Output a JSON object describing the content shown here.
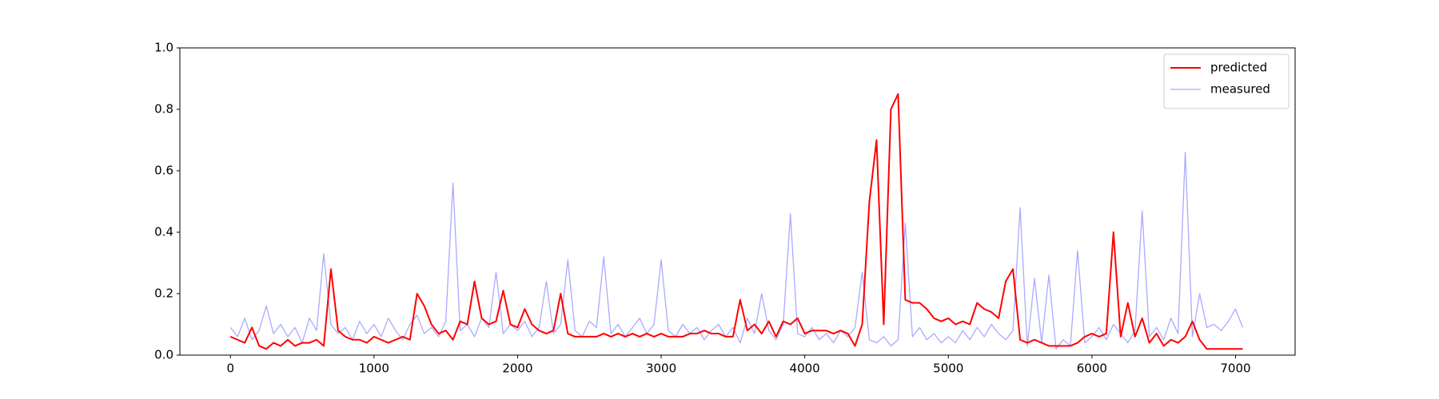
{
  "chart_data": {
    "type": "line",
    "x": [
      0,
      50,
      100,
      150,
      200,
      250,
      300,
      350,
      400,
      450,
      500,
      550,
      600,
      650,
      700,
      750,
      800,
      850,
      900,
      950,
      1000,
      1050,
      1100,
      1150,
      1200,
      1250,
      1300,
      1350,
      1400,
      1450,
      1500,
      1550,
      1600,
      1650,
      1700,
      1750,
      1800,
      1850,
      1900,
      1950,
      2000,
      2050,
      2100,
      2150,
      2200,
      2250,
      2300,
      2350,
      2400,
      2450,
      2500,
      2550,
      2600,
      2650,
      2700,
      2750,
      2800,
      2850,
      2900,
      2950,
      3000,
      3050,
      3100,
      3150,
      3200,
      3250,
      3300,
      3350,
      3400,
      3450,
      3500,
      3550,
      3600,
      3650,
      3700,
      3750,
      3800,
      3850,
      3900,
      3950,
      4000,
      4050,
      4100,
      4150,
      4200,
      4250,
      4300,
      4350,
      4400,
      4450,
      4500,
      4550,
      4600,
      4650,
      4700,
      4750,
      4800,
      4850,
      4900,
      4950,
      5000,
      5050,
      5100,
      5150,
      5200,
      5250,
      5300,
      5350,
      5400,
      5450,
      5500,
      5550,
      5600,
      5650,
      5700,
      5750,
      5800,
      5850,
      5900,
      5950,
      6000,
      6050,
      6100,
      6150,
      6200,
      6250,
      6300,
      6350,
      6400,
      6450,
      6500,
      6550,
      6600,
      6650,
      6700,
      6750,
      6800,
      6850,
      6900,
      6950,
      7000,
      7050
    ],
    "series": [
      {
        "name": "predicted",
        "color": "#ff0000",
        "values": [
          0.06,
          0.05,
          0.04,
          0.09,
          0.03,
          0.02,
          0.04,
          0.03,
          0.05,
          0.03,
          0.04,
          0.04,
          0.05,
          0.03,
          0.28,
          0.08,
          0.06,
          0.05,
          0.05,
          0.04,
          0.06,
          0.05,
          0.04,
          0.05,
          0.06,
          0.05,
          0.2,
          0.16,
          0.1,
          0.07,
          0.08,
          0.05,
          0.11,
          0.1,
          0.24,
          0.12,
          0.1,
          0.11,
          0.21,
          0.1,
          0.09,
          0.15,
          0.1,
          0.08,
          0.07,
          0.08,
          0.2,
          0.07,
          0.06,
          0.06,
          0.06,
          0.06,
          0.07,
          0.06,
          0.07,
          0.06,
          0.07,
          0.06,
          0.07,
          0.06,
          0.07,
          0.06,
          0.06,
          0.06,
          0.07,
          0.07,
          0.08,
          0.07,
          0.07,
          0.06,
          0.06,
          0.18,
          0.08,
          0.1,
          0.07,
          0.11,
          0.06,
          0.11,
          0.1,
          0.12,
          0.07,
          0.08,
          0.08,
          0.08,
          0.07,
          0.08,
          0.07,
          0.03,
          0.1,
          0.5,
          0.7,
          0.1,
          0.8,
          0.85,
          0.18,
          0.17,
          0.17,
          0.15,
          0.12,
          0.11,
          0.12,
          0.1,
          0.11,
          0.1,
          0.17,
          0.15,
          0.14,
          0.12,
          0.24,
          0.28,
          0.05,
          0.04,
          0.05,
          0.04,
          0.03,
          0.03,
          0.03,
          0.03,
          0.04,
          0.06,
          0.07,
          0.06,
          0.07,
          0.4,
          0.06,
          0.17,
          0.06,
          0.12,
          0.04,
          0.07,
          0.03,
          0.05,
          0.04,
          0.06,
          0.11,
          0.05,
          0.02,
          0.02,
          0.02,
          0.02,
          0.02,
          0.02
        ]
      },
      {
        "name": "measured",
        "color": "#aaaaff",
        "values": [
          0.09,
          0.06,
          0.12,
          0.05,
          0.08,
          0.16,
          0.07,
          0.1,
          0.06,
          0.09,
          0.04,
          0.12,
          0.08,
          0.33,
          0.1,
          0.07,
          0.09,
          0.05,
          0.11,
          0.07,
          0.1,
          0.06,
          0.12,
          0.08,
          0.05,
          0.1,
          0.13,
          0.07,
          0.09,
          0.06,
          0.11,
          0.56,
          0.08,
          0.1,
          0.06,
          0.12,
          0.09,
          0.27,
          0.07,
          0.1,
          0.08,
          0.11,
          0.06,
          0.09,
          0.24,
          0.07,
          0.1,
          0.31,
          0.08,
          0.06,
          0.11,
          0.09,
          0.32,
          0.07,
          0.1,
          0.06,
          0.09,
          0.12,
          0.07,
          0.1,
          0.31,
          0.08,
          0.06,
          0.1,
          0.07,
          0.09,
          0.05,
          0.08,
          0.1,
          0.06,
          0.09,
          0.04,
          0.12,
          0.07,
          0.2,
          0.08,
          0.05,
          0.1,
          0.46,
          0.07,
          0.06,
          0.09,
          0.05,
          0.07,
          0.04,
          0.08,
          0.06,
          0.09,
          0.27,
          0.05,
          0.04,
          0.06,
          0.03,
          0.05,
          0.43,
          0.06,
          0.09,
          0.05,
          0.07,
          0.04,
          0.06,
          0.04,
          0.08,
          0.05,
          0.09,
          0.06,
          0.1,
          0.07,
          0.05,
          0.08,
          0.48,
          0.03,
          0.25,
          0.04,
          0.26,
          0.02,
          0.05,
          0.03,
          0.34,
          0.04,
          0.06,
          0.09,
          0.05,
          0.1,
          0.07,
          0.04,
          0.08,
          0.47,
          0.06,
          0.09,
          0.05,
          0.12,
          0.07,
          0.66,
          0.06,
          0.2,
          0.09,
          0.1,
          0.08,
          0.11,
          0.15,
          0.09
        ]
      }
    ],
    "xlim": [
      -352,
      7415
    ],
    "xticks": [
      0,
      1000,
      2000,
      3000,
      4000,
      5000,
      6000,
      7000
    ],
    "ylim": [
      0,
      1
    ],
    "yticks": [
      {
        "value": 0,
        "label": "0.0"
      },
      0.2,
      0.4,
      0.6,
      0.8,
      {
        "value": 1,
        "label": "1.0"
      }
    ],
    "legend": "upper right"
  }
}
